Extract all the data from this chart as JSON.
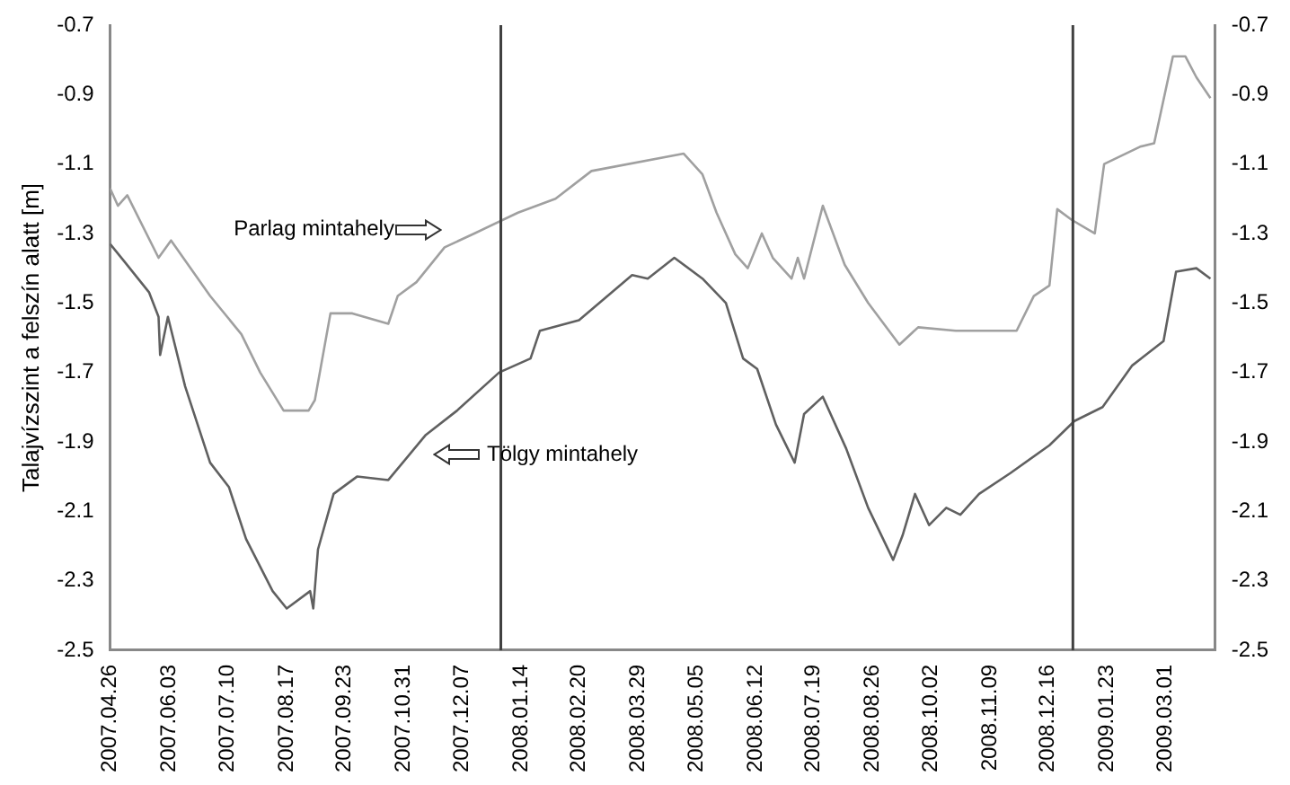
{
  "chart_data": {
    "type": "line",
    "ylabel": "Talajvízszint a felszín alatt [m]",
    "grid": false,
    "legend": false,
    "marker": "none",
    "line_style": "solid",
    "xlim": [
      "2007-04-26",
      "2009-04-02"
    ],
    "xticks": [
      {
        "value": "2007-04-26",
        "label": "2007.04.26"
      },
      {
        "value": "2007-06-03",
        "label": "2007.06.03"
      },
      {
        "value": "2007-07-10",
        "label": "2007.07.10"
      },
      {
        "value": "2007-08-17",
        "label": "2007.08.17"
      },
      {
        "value": "2007-09-23",
        "label": "2007.09.23"
      },
      {
        "value": "2007-10-31",
        "label": "2007.10.31"
      },
      {
        "value": "2007-12-07",
        "label": "2007.12.07"
      },
      {
        "value": "2008-01-14",
        "label": "2008.01.14"
      },
      {
        "value": "2008-02-20",
        "label": "2008.02.20"
      },
      {
        "value": "2008-03-29",
        "label": "2008.03.29"
      },
      {
        "value": "2008-05-05",
        "label": "2008.05.05"
      },
      {
        "value": "2008-06-12",
        "label": "2008.06.12"
      },
      {
        "value": "2008-07-19",
        "label": "2008.07.19"
      },
      {
        "value": "2008-08-26",
        "label": "2008.08.26"
      },
      {
        "value": "2008-10-02",
        "label": "2008.10.02"
      },
      {
        "value": "2008-11-09",
        "label": "2008.11.09"
      },
      {
        "value": "2008-12-16",
        "label": "2008.12.16"
      },
      {
        "value": "2009-01-23",
        "label": "2009.01.23"
      },
      {
        "value": "2009-03-01",
        "label": "2009.03.01"
      }
    ],
    "ylim": [
      -2.5,
      -0.7
    ],
    "yticks": [
      -2.5,
      -2.3,
      -2.1,
      -1.9,
      -1.7,
      -1.5,
      -1.3,
      -1.1,
      -0.9,
      -0.7
    ],
    "y2lim": [
      -2.5,
      -0.7
    ],
    "y2ticks": [
      -2.5,
      -2.3,
      -2.1,
      -1.9,
      -1.7,
      -1.5,
      -1.3,
      -1.1,
      -0.9,
      -0.7
    ],
    "ref_lines": [
      {
        "axis": "x",
        "value": "2008-01-01",
        "color": "#404040"
      },
      {
        "axis": "x",
        "value": "2009-01-01",
        "color": "#404040"
      }
    ],
    "series": [
      {
        "name": "Parlag mintahely",
        "color": "#a0a0a0",
        "x": [
          "2007-04-26",
          "2007-05-01",
          "2007-05-07",
          "2007-05-27",
          "2007-06-04",
          "2007-06-29",
          "2007-07-19",
          "2007-07-31",
          "2007-08-15",
          "2007-08-31",
          "2007-09-04",
          "2007-09-14",
          "2007-09-28",
          "2007-10-21",
          "2007-10-27",
          "2007-11-08",
          "2007-11-26",
          "2007-12-15",
          "2008-01-12",
          "2008-02-05",
          "2008-02-28",
          "2008-04-27",
          "2008-05-09",
          "2008-05-18",
          "2008-05-30",
          "2008-06-07",
          "2008-06-16",
          "2008-06-23",
          "2008-07-05",
          "2008-07-09",
          "2008-07-13",
          "2008-07-25",
          "2008-08-08",
          "2008-08-23",
          "2008-09-12",
          "2008-09-24",
          "2008-10-18",
          "2008-11-26",
          "2008-12-07",
          "2008-12-17",
          "2008-12-22",
          "2008-12-31",
          "2009-01-15",
          "2009-01-21",
          "2009-02-13",
          "2009-02-22",
          "2009-03-06",
          "2009-03-14",
          "2009-03-21",
          "2009-03-30"
        ],
        "values": [
          -1.17,
          -1.22,
          -1.19,
          -1.37,
          -1.32,
          -1.48,
          -1.59,
          -1.7,
          -1.81,
          -1.81,
          -1.78,
          -1.53,
          -1.53,
          -1.56,
          -1.48,
          -1.44,
          -1.34,
          -1.3,
          -1.24,
          -1.2,
          -1.12,
          -1.07,
          -1.13,
          -1.24,
          -1.36,
          -1.4,
          -1.3,
          -1.37,
          -1.43,
          -1.37,
          -1.43,
          -1.22,
          -1.39,
          -1.5,
          -1.62,
          -1.57,
          -1.58,
          -1.58,
          -1.48,
          -1.45,
          -1.23,
          -1.26,
          -1.3,
          -1.1,
          -1.05,
          -1.04,
          -0.79,
          -0.79,
          -0.85,
          -0.91
        ]
      },
      {
        "name": "Tölgy mintahely",
        "color": "#606060",
        "x": [
          "2007-04-26",
          "2007-05-05",
          "2007-05-21",
          "2007-05-27",
          "2007-05-28",
          "2007-06-02",
          "2007-06-13",
          "2007-06-29",
          "2007-07-11",
          "2007-07-22",
          "2007-08-08",
          "2007-08-17",
          "2007-09-01",
          "2007-09-03",
          "2007-09-06",
          "2007-09-16",
          "2007-10-01",
          "2007-10-21",
          "2007-11-14",
          "2007-12-04",
          "2007-12-31",
          "2008-01-20",
          "2008-01-26",
          "2008-02-20",
          "2008-03-25",
          "2008-04-04",
          "2008-04-21",
          "2008-05-09",
          "2008-05-24",
          "2008-06-04",
          "2008-06-13",
          "2008-06-25",
          "2008-07-07",
          "2008-07-13",
          "2008-07-25",
          "2008-08-09",
          "2008-08-23",
          "2008-09-08",
          "2008-09-14",
          "2008-09-22",
          "2008-10-01",
          "2008-10-12",
          "2008-10-21",
          "2008-11-02",
          "2008-11-22",
          "2008-12-17",
          "2009-01-02",
          "2009-01-20",
          "2009-02-08",
          "2009-02-28",
          "2009-03-08",
          "2009-03-21",
          "2009-03-30"
        ],
        "values": [
          -1.33,
          -1.38,
          -1.47,
          -1.54,
          -1.65,
          -1.54,
          -1.74,
          -1.96,
          -2.03,
          -2.18,
          -2.33,
          -2.38,
          -2.33,
          -2.38,
          -2.21,
          -2.05,
          -2.0,
          -2.01,
          -1.88,
          -1.81,
          -1.7,
          -1.66,
          -1.58,
          -1.55,
          -1.42,
          -1.43,
          -1.37,
          -1.43,
          -1.5,
          -1.66,
          -1.69,
          -1.85,
          -1.96,
          -1.82,
          -1.77,
          -1.92,
          -2.09,
          -2.24,
          -2.17,
          -2.05,
          -2.14,
          -2.09,
          -2.11,
          -2.05,
          -1.99,
          -1.91,
          -1.84,
          -1.8,
          -1.68,
          -1.61,
          -1.41,
          -1.4,
          -1.43
        ]
      }
    ]
  }
}
